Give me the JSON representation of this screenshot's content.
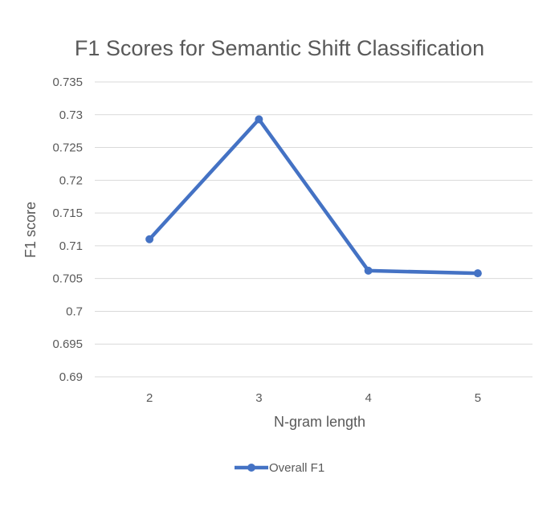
{
  "chart_data": {
    "type": "line",
    "title": "F1 Scores for Semantic Shift Classification",
    "xlabel": "N-gram length",
    "ylabel": "F1 score",
    "categories": [
      "2",
      "3",
      "4",
      "5"
    ],
    "y_ticks": [
      "0.69",
      "0.695",
      "0.7",
      "0.705",
      "0.71",
      "0.715",
      "0.72",
      "0.725",
      "0.73",
      "0.735"
    ],
    "ylim": [
      0.69,
      0.735
    ],
    "grid": true,
    "legend_position": "bottom",
    "series": [
      {
        "name": "Overall F1",
        "color": "#4472c4",
        "values": [
          0.711,
          0.7293,
          0.7062,
          0.7058
        ]
      }
    ]
  }
}
